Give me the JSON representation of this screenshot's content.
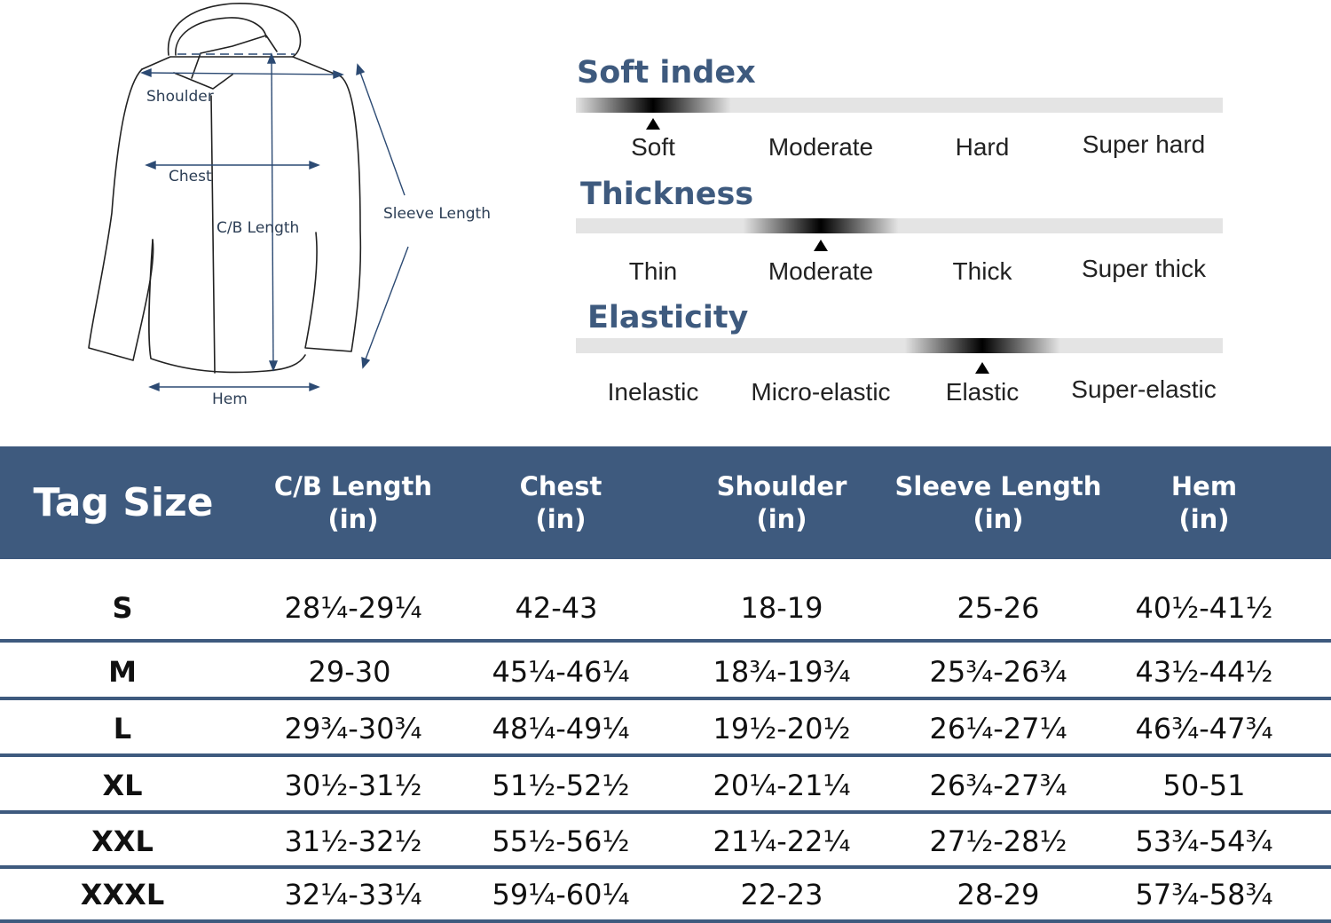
{
  "diagram": {
    "labels": {
      "shoulder": "Shoulder",
      "chest": "Chest",
      "cb_length": "C/B Length",
      "sleeve_length": "Sleeve Length",
      "hem": "Hem"
    }
  },
  "scales": [
    {
      "title": "Soft index",
      "options": [
        "Soft",
        "Moderate",
        "Hard",
        "Super hard"
      ],
      "selected_index": 0
    },
    {
      "title": "Thickness",
      "options": [
        "Thin",
        "Moderate",
        "Thick",
        "Super thick"
      ],
      "selected_index": 1
    },
    {
      "title": "Elasticity",
      "options": [
        "Inelastic",
        "Micro-elastic",
        "Elastic",
        "Super-elastic"
      ],
      "selected_index": 2
    }
  ],
  "size_table": {
    "header": {
      "tag_size": "Tag Size",
      "columns": [
        {
          "name": "C/B Length",
          "unit": "(in)"
        },
        {
          "name": "Chest",
          "unit": "(in)"
        },
        {
          "name": "Shoulder",
          "unit": "(in)"
        },
        {
          "name": "Sleeve Length",
          "unit": "(in)"
        },
        {
          "name": "Hem",
          "unit": "(in)"
        }
      ]
    },
    "rows": [
      {
        "size": "S",
        "values": [
          "28¼-29¼",
          "42-43",
          "18-19",
          "25-26",
          "40½-41½"
        ]
      },
      {
        "size": "M",
        "values": [
          "29-30",
          "45¼-46¼",
          "18¾-19¾",
          "25¾-26¾",
          "43½-44½"
        ]
      },
      {
        "size": "L",
        "values": [
          "29¾-30¾",
          "48¼-49¼",
          "19½-20½",
          "26¼-27¼",
          "46¾-47¾"
        ]
      },
      {
        "size": "XL",
        "values": [
          "30½-31½",
          "51½-52½",
          "20¼-21¼",
          "26¾-27¾",
          "50-51"
        ]
      },
      {
        "size": "XXL",
        "values": [
          "31½-32½",
          "55½-56½",
          "21¼-22¼",
          "27½-28½",
          "53¾-54¾"
        ]
      },
      {
        "size": "XXXL",
        "values": [
          "32¼-33¼",
          "59¼-60¼",
          "22-23",
          "28-29",
          "57¾-58¾"
        ]
      }
    ]
  }
}
